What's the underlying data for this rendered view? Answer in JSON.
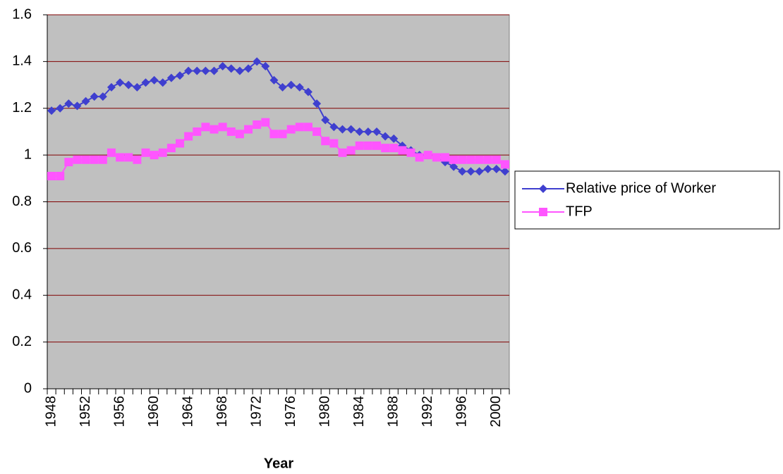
{
  "chart_data": {
    "type": "line",
    "x_label": "Year",
    "categories": [
      "1948",
      null,
      null,
      null,
      "1952",
      null,
      null,
      null,
      "1956",
      null,
      null,
      null,
      "1960",
      null,
      null,
      null,
      "1964",
      null,
      null,
      null,
      "1968",
      null,
      null,
      null,
      "1972",
      null,
      null,
      null,
      "1976",
      null,
      null,
      null,
      "1980",
      null,
      null,
      null,
      "1984",
      null,
      null,
      null,
      "1988",
      null,
      null,
      null,
      "1992",
      null,
      null,
      null,
      "1996",
      null,
      null,
      null,
      "2000",
      null
    ],
    "series": [
      {
        "name": "Relative price of Worker",
        "color": "#3f3fcf",
        "marker": "diamond",
        "values": [
          1.19,
          1.2,
          1.22,
          1.21,
          1.23,
          1.25,
          1.25,
          1.29,
          1.31,
          1.3,
          1.29,
          1.31,
          1.32,
          1.31,
          1.33,
          1.34,
          1.36,
          1.36,
          1.36,
          1.36,
          1.38,
          1.37,
          1.36,
          1.37,
          1.4,
          1.38,
          1.32,
          1.29,
          1.3,
          1.29,
          1.27,
          1.22,
          1.15,
          1.12,
          1.11,
          1.11,
          1.1,
          1.1,
          1.1,
          1.08,
          1.07,
          1.04,
          1.02,
          1.0,
          1.0,
          0.99,
          0.97,
          0.95,
          0.93,
          0.93,
          0.93,
          0.94,
          0.94,
          0.93
        ]
      },
      {
        "name": "TFP",
        "color": "#ff55ff",
        "marker": "square",
        "values": [
          0.91,
          0.91,
          0.97,
          0.98,
          0.98,
          0.98,
          0.98,
          1.01,
          0.99,
          0.99,
          0.98,
          1.01,
          1.0,
          1.01,
          1.03,
          1.05,
          1.08,
          1.1,
          1.12,
          1.11,
          1.12,
          1.1,
          1.09,
          1.11,
          1.13,
          1.14,
          1.09,
          1.09,
          1.11,
          1.12,
          1.12,
          1.1,
          1.06,
          1.05,
          1.01,
          1.02,
          1.04,
          1.04,
          1.04,
          1.03,
          1.03,
          1.02,
          1.01,
          0.99,
          1.0,
          0.99,
          0.99,
          0.98,
          0.98,
          0.98,
          0.98,
          0.98,
          0.98,
          0.96
        ]
      }
    ],
    "ylim": [
      0,
      1.6
    ],
    "yticks": [
      0,
      0.2,
      0.4,
      0.6,
      0.8,
      1,
      1.2,
      1.4,
      1.6
    ],
    "grid": true,
    "legend": "right",
    "plot_background": "#c0c0c0"
  }
}
